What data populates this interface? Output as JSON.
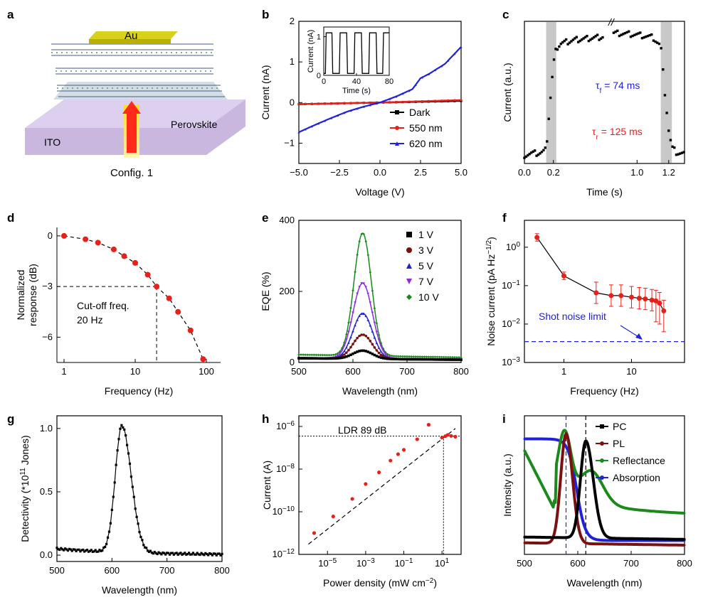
{
  "panels": {
    "a": "a",
    "b": "b",
    "c": "c",
    "d": "d",
    "e": "e",
    "f": "f",
    "g": "g",
    "h": "h",
    "i": "i"
  },
  "colors": {
    "red": "#e8201a",
    "blue": "#1f22d8",
    "darkred": "#7b1010",
    "violet": "#8a2be2",
    "green": "#1a8a1a",
    "black": "#000000"
  },
  "schematic": {
    "electrode": "Au",
    "substrate": "ITO",
    "material": "Perovskite",
    "config": "Config. 1"
  },
  "chart_data": [
    {
      "id": "b",
      "type": "line",
      "xlabel": "Voltage (V)",
      "ylabel": "Current (nA)",
      "xlim": [
        -5,
        5
      ],
      "ylim": [
        -1.5,
        2
      ],
      "xticks": [
        "−5.0",
        "−2.5",
        "0.0",
        "2.5",
        "5.0"
      ],
      "yticks": [
        "−1",
        "0",
        "1",
        "2"
      ],
      "legend_position": "bottom-right",
      "series": [
        {
          "name": "Dark",
          "x": [
            -5,
            -2.5,
            0,
            2.5,
            5
          ],
          "y": [
            -0.04,
            -0.02,
            0,
            0.02,
            0.04
          ]
        },
        {
          "name": "550 nm",
          "x": [
            -5,
            -2.5,
            0,
            2.5,
            5
          ],
          "y": [
            -0.04,
            -0.02,
            0,
            0.03,
            0.06
          ]
        },
        {
          "name": "620 nm",
          "x": [
            -5,
            -4,
            -3,
            -2,
            -1,
            0,
            1,
            2,
            2.5,
            3,
            4,
            5
          ],
          "y": [
            -0.73,
            -0.55,
            -0.38,
            -0.22,
            -0.1,
            0,
            0.15,
            0.33,
            0.6,
            0.7,
            0.95,
            1.37
          ]
        }
      ],
      "inset": {
        "xlabel": "Time (s)",
        "ylabel": "Current (nA)",
        "xticks": [
          "0",
          "40",
          "80"
        ],
        "yticks": [
          "0",
          "1"
        ],
        "x": [
          0,
          2,
          3,
          10,
          11,
          19,
          20,
          28,
          29,
          37,
          38,
          46,
          47,
          55,
          56,
          64,
          65,
          72,
          73,
          80
        ],
        "y": [
          0.05,
          0.05,
          1.1,
          1.1,
          0.05,
          0.05,
          1.1,
          1.1,
          0.05,
          0.05,
          1.1,
          1.1,
          0.05,
          0.05,
          1.1,
          1.1,
          0.05,
          0.05,
          1.1,
          1.1
        ]
      }
    },
    {
      "id": "c",
      "type": "scatter",
      "xlabel": "Time (s)",
      "ylabel": "Current (a.u.)",
      "xticks": [
        "0.0",
        "0.2",
        "1.0",
        "1.2"
      ],
      "annotations": [
        "τf = 74 ms",
        "τr = 125 ms"
      ],
      "x": [
        0.0,
        0.05,
        0.1,
        0.13,
        0.15,
        0.17,
        0.2,
        0.22,
        0.25,
        0.35,
        0.5,
        0.7,
        0.9,
        1.0,
        1.1,
        1.15,
        1.17,
        1.2,
        1.22,
        1.25,
        1.3
      ],
      "y": [
        0.02,
        0.03,
        0.03,
        0.04,
        0.06,
        0.35,
        0.75,
        0.88,
        0.92,
        0.95,
        0.97,
        1.0,
        1.0,
        0.99,
        0.97,
        0.9,
        0.6,
        0.22,
        0.08,
        0.04,
        0.03
      ]
    },
    {
      "id": "d",
      "type": "scatter",
      "xlabel": "Frequency (Hz)",
      "ylabel": "Normalized response (dB)",
      "ylim": [
        -7.5,
        0.5
      ],
      "yticks": [
        "0",
        "−3",
        "−6"
      ],
      "xticks": [
        "1",
        "10",
        "100"
      ],
      "annotation": "Cut-off freq. 20 Hz",
      "x": [
        1,
        2,
        3,
        5,
        7,
        10,
        15,
        20,
        30,
        40,
        60,
        90
      ],
      "y": [
        0,
        -0.2,
        -0.4,
        -0.8,
        -1.2,
        -1.6,
        -2.3,
        -3.0,
        -3.7,
        -4.5,
        -5.6,
        -7.3
      ]
    },
    {
      "id": "e",
      "type": "line",
      "xlabel": "Wavelength (nm)",
      "ylabel": "EQE (%)",
      "xlim": [
        500,
        800
      ],
      "ylim": [
        0,
        400
      ],
      "xticks": [
        "500",
        "600",
        "700",
        "800"
      ],
      "yticks": [
        "0",
        "200",
        "400"
      ],
      "legend_position": "top-right",
      "series": [
        {
          "name": "1 V",
          "peak": 23
        },
        {
          "name": "3 V",
          "peak": 68
        },
        {
          "name": "5 V",
          "peak": 128
        },
        {
          "name": "7 V",
          "peak": 213
        },
        {
          "name": "10 V",
          "peak": 345
        }
      ]
    },
    {
      "id": "f",
      "type": "scatter",
      "xlabel": "Frequency (Hz)",
      "ylabel": "Noise current (pA Hz−1/2)",
      "annotation": "Shot noise limit",
      "shot_noise": 0.0035,
      "yticks": [
        "10−3",
        "10−2",
        "10−1",
        "100"
      ],
      "xticks": [
        "1",
        "10"
      ],
      "x": [
        0.4,
        1,
        3,
        5,
        7,
        10,
        13,
        16,
        20,
        23,
        26,
        30
      ],
      "y": [
        1.8,
        0.18,
        0.065,
        0.055,
        0.055,
        0.05,
        0.047,
        0.045,
        0.042,
        0.04,
        0.035,
        0.022
      ]
    },
    {
      "id": "g",
      "type": "line",
      "xlabel": "Wavelength (nm)",
      "ylabel": "Detectivity (*1011 Jones)",
      "xlim": [
        500,
        800
      ],
      "ylim": [
        -0.05,
        1.1
      ],
      "xticks": [
        "500",
        "600",
        "700",
        "800"
      ],
      "yticks": [
        "0.0",
        "0.5",
        "1.0"
      ],
      "x": [
        500,
        540,
        580,
        600,
        610,
        618,
        630,
        650,
        680,
        720,
        800
      ],
      "y": [
        0.05,
        0.05,
        0.06,
        0.3,
        0.82,
        1.04,
        0.82,
        0.3,
        0.08,
        0.03,
        0.01
      ]
    },
    {
      "id": "h",
      "type": "scatter",
      "xlabel": "Power density (mW cm−2)",
      "ylabel": "Current (A)",
      "annotation": "LDR 89 dB",
      "xticks": [
        "10−5",
        "10−3",
        "10−1",
        "101"
      ],
      "yticks": [
        "10−12",
        "10−10",
        "10−8",
        "10−6"
      ],
      "x": [
        2e-06,
        2e-05,
        0.0002,
        0.001,
        0.005,
        0.02,
        0.05,
        0.1,
        0.5,
        2,
        10,
        15,
        20,
        30,
        50
      ],
      "y": [
        1e-11,
        6e-11,
        4e-10,
        2e-09,
        7e-09,
        2.5e-08,
        5e-08,
        8e-08,
        2.5e-07,
        1.2e-06,
        3e-07,
        3.5e-07,
        4e-07,
        3.6e-07,
        3.3e-07
      ]
    },
    {
      "id": "i",
      "type": "line",
      "xlabel": "Wavelength (nm)",
      "ylabel": "Intensity (a.u.)",
      "xlim": [
        500,
        800
      ],
      "xticks": [
        "500",
        "600",
        "700",
        "800"
      ],
      "legend_position": "top-right",
      "series": [
        {
          "name": "PC",
          "peak": 615
        },
        {
          "name": "PL",
          "peak": 578
        },
        {
          "name": "Reflectance",
          "peak": 575
        },
        {
          "name": "Absorption",
          "edge": 590
        }
      ]
    }
  ]
}
